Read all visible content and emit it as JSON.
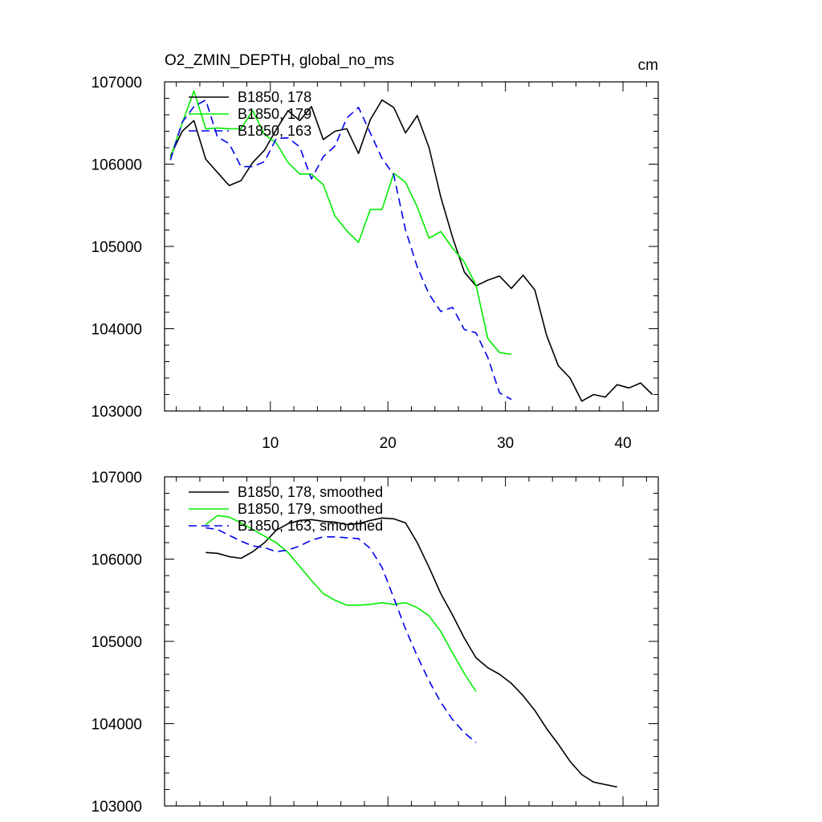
{
  "chart_data": [
    {
      "type": "line",
      "title": "O2_ZMIN_DEPTH, global_no_ms",
      "units": "cm",
      "xlim": [
        1,
        43
      ],
      "ylim": [
        103000,
        107000
      ],
      "x_ticks": [
        10,
        20,
        30,
        40
      ],
      "x_tick_labels": [
        "10",
        "20",
        "30",
        "40"
      ],
      "y_ticks": [
        103000,
        104000,
        105000,
        106000,
        107000
      ],
      "y_tick_labels": [
        "103000",
        "104000",
        "105000",
        "106000",
        "107000"
      ],
      "legend_position": "top-left",
      "series": [
        {
          "name": "B1850, 178",
          "color": "#000000",
          "dash": "solid",
          "x": [
            1.5,
            2.5,
            3.5,
            4.5,
            5.5,
            6.5,
            7.5,
            8.5,
            9.5,
            10.5,
            11.5,
            12.5,
            13.5,
            14.5,
            15.5,
            16.5,
            17.5,
            18.5,
            19.5,
            20.5,
            21.5,
            22.5,
            23.5,
            24.5,
            25.5,
            26.5,
            27.5,
            28.5,
            29.5,
            30.5,
            31.5,
            32.5,
            33.5,
            34.5,
            35.5,
            36.5,
            37.5,
            38.5,
            39.5,
            40.5,
            41.5,
            42.5
          ],
          "y": [
            106100,
            106400,
            106530,
            106060,
            105900,
            105740,
            105800,
            106020,
            106170,
            106420,
            106650,
            106530,
            106700,
            106300,
            106400,
            106430,
            106130,
            106540,
            106780,
            106690,
            106380,
            106590,
            106200,
            105600,
            105110,
            104690,
            104520,
            104590,
            104640,
            104490,
            104650,
            104470,
            103920,
            103550,
            103400,
            103120,
            103200,
            103170,
            103320,
            103280,
            103340,
            103200
          ]
        },
        {
          "name": "B1850, 179",
          "color": "#00ee00",
          "dash": "solid",
          "x": [
            1.5,
            2.5,
            3.5,
            4.5,
            5.5,
            6.5,
            7.5,
            8.5,
            9.5,
            10.5,
            11.5,
            12.5,
            13.5,
            14.5,
            15.5,
            16.5,
            17.5,
            18.5,
            19.5,
            20.5,
            21.5,
            22.5,
            23.5,
            24.5,
            25.5,
            26.5,
            27.5,
            28.5,
            29.5,
            30.5
          ],
          "y": [
            106080,
            106500,
            106890,
            106430,
            106440,
            106430,
            106430,
            106650,
            106360,
            106260,
            106020,
            105880,
            105880,
            105750,
            105370,
            105190,
            105050,
            105450,
            105450,
            105890,
            105780,
            105480,
            105100,
            105180,
            104980,
            104810,
            104530,
            103880,
            103710,
            103690
          ]
        },
        {
          "name": "B1850, 163",
          "color": "#0000ee",
          "dash": "10,6",
          "x": [
            1.5,
            2.5,
            3.5,
            4.5,
            5.5,
            6.5,
            7.5,
            8.5,
            9.5,
            10.5,
            11.5,
            12.5,
            13.5,
            14.5,
            15.5,
            16.5,
            17.5,
            18.5,
            19.5,
            20.5,
            21.5,
            22.5,
            23.5,
            24.5,
            25.5,
            26.5,
            27.5,
            28.5,
            29.5,
            30.5
          ],
          "y": [
            106050,
            106510,
            106700,
            106780,
            106330,
            106250,
            105970,
            105970,
            106030,
            106310,
            106320,
            106210,
            105820,
            106090,
            106220,
            106560,
            106690,
            106380,
            106070,
            105870,
            105200,
            104750,
            104420,
            104210,
            104260,
            103990,
            103950,
            103650,
            103220,
            103140
          ]
        }
      ]
    },
    {
      "type": "line",
      "xlim": [
        1,
        43
      ],
      "ylim": [
        103000,
        107000
      ],
      "x_ticks": [
        10,
        20,
        30,
        40
      ],
      "y_ticks": [
        103000,
        104000,
        105000,
        106000,
        107000
      ],
      "y_tick_labels": [
        "103000",
        "104000",
        "105000",
        "106000",
        "107000"
      ],
      "legend_position": "top-left",
      "series": [
        {
          "name": "B1850, 178, smoothed",
          "color": "#000000",
          "dash": "solid",
          "x": [
            4.5,
            5.5,
            6.5,
            7.5,
            8.5,
            9.5,
            10.5,
            11.5,
            12.5,
            13.5,
            14.5,
            15.5,
            16.5,
            17.5,
            18.5,
            19.5,
            20.5,
            21.5,
            22.5,
            23.5,
            24.5,
            25.5,
            26.5,
            27.5,
            28.5,
            29.5,
            30.5,
            31.5,
            32.5,
            33.5,
            34.5,
            35.5,
            36.5,
            37.5,
            38.5,
            39.5
          ],
          "y": [
            106080,
            106070,
            106030,
            106010,
            106090,
            106200,
            106350,
            106430,
            106470,
            106480,
            106460,
            106450,
            106420,
            106430,
            106470,
            106500,
            106490,
            106440,
            106200,
            105900,
            105580,
            105320,
            105040,
            104800,
            104680,
            104600,
            104490,
            104340,
            104160,
            103940,
            103750,
            103540,
            103380,
            103290,
            103260,
            103230
          ]
        },
        {
          "name": "B1850, 179, smoothed",
          "color": "#00ee00",
          "dash": "solid",
          "x": [
            4.5,
            5.5,
            6.5,
            7.5,
            8.5,
            9.5,
            10.5,
            11.5,
            12.5,
            13.5,
            14.5,
            15.5,
            16.5,
            17.5,
            18.5,
            19.5,
            20.5,
            21.5,
            22.5,
            23.5,
            24.5,
            25.5,
            26.5,
            27.5
          ],
          "y": [
            106420,
            106530,
            106510,
            106440,
            106360,
            106280,
            106200,
            106080,
            105910,
            105740,
            105580,
            105500,
            105440,
            105440,
            105450,
            105470,
            105450,
            105470,
            105410,
            105310,
            105120,
            104860,
            104610,
            104390
          ]
        },
        {
          "name": "B1850, 163, smoothed",
          "color": "#0000ee",
          "dash": "10,6",
          "x": [
            4.5,
            5.5,
            6.5,
            7.5,
            8.5,
            9.5,
            10.5,
            11.5,
            12.5,
            13.5,
            14.5,
            15.5,
            16.5,
            17.5,
            18.5,
            19.5,
            20.5,
            21.5,
            22.5,
            23.5,
            24.5,
            25.5,
            26.5,
            27.5
          ],
          "y": [
            106380,
            106360,
            106290,
            106220,
            106160,
            106140,
            106090,
            106110,
            106160,
            106230,
            106270,
            106270,
            106260,
            106250,
            106130,
            105900,
            105530,
            105150,
            104820,
            104520,
            104260,
            104050,
            103890,
            103770
          ]
        }
      ]
    }
  ]
}
